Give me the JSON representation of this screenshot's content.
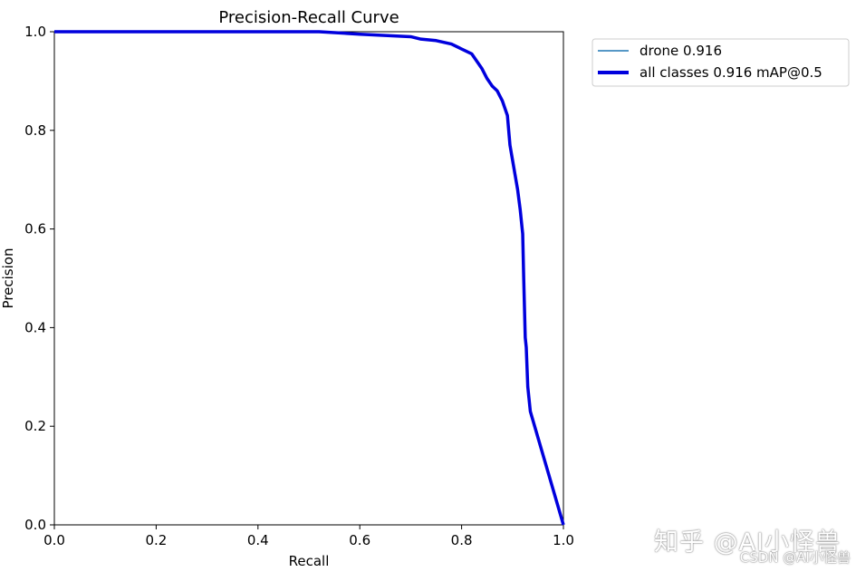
{
  "chart_data": {
    "type": "line",
    "title": "Precision-Recall Curve",
    "xlabel": "Recall",
    "ylabel": "Precision",
    "xlim": [
      0,
      1
    ],
    "ylim": [
      0,
      1
    ],
    "xticks": [
      "0.0",
      "0.2",
      "0.4",
      "0.6",
      "0.8",
      "1.0"
    ],
    "yticks": [
      "0.0",
      "0.2",
      "0.4",
      "0.6",
      "0.8",
      "1.0"
    ],
    "grid": false,
    "legend_position": "outside top-right",
    "series": [
      {
        "name": "drone 0.916",
        "color": "#1f77b4",
        "style": "thin",
        "x": [
          0,
          0.52,
          0.6,
          0.7,
          0.72,
          0.75,
          0.78,
          0.8,
          0.82,
          0.83,
          0.84,
          0.85,
          0.86,
          0.87,
          0.88,
          0.89,
          0.895,
          0.9,
          0.905,
          0.91,
          0.915,
          0.92,
          0.922,
          0.925,
          0.927,
          0.93,
          0.935,
          1.0
        ],
        "y": [
          1.0,
          1.0,
          0.995,
          0.99,
          0.985,
          0.982,
          0.975,
          0.965,
          0.955,
          0.94,
          0.925,
          0.905,
          0.89,
          0.88,
          0.86,
          0.83,
          0.77,
          0.74,
          0.71,
          0.68,
          0.64,
          0.59,
          0.5,
          0.38,
          0.36,
          0.28,
          0.23,
          0.0
        ]
      },
      {
        "name": "all classes 0.916 mAP@0.5",
        "color": "#0000dd",
        "style": "thick",
        "x": [
          0,
          0.52,
          0.6,
          0.7,
          0.72,
          0.75,
          0.78,
          0.8,
          0.82,
          0.83,
          0.84,
          0.85,
          0.86,
          0.87,
          0.88,
          0.89,
          0.895,
          0.9,
          0.905,
          0.91,
          0.915,
          0.92,
          0.922,
          0.925,
          0.927,
          0.93,
          0.935,
          1.0
        ],
        "y": [
          1.0,
          1.0,
          0.995,
          0.99,
          0.985,
          0.982,
          0.975,
          0.965,
          0.955,
          0.94,
          0.925,
          0.905,
          0.89,
          0.88,
          0.86,
          0.83,
          0.77,
          0.74,
          0.71,
          0.68,
          0.64,
          0.59,
          0.5,
          0.38,
          0.36,
          0.28,
          0.23,
          0.0
        ]
      }
    ]
  },
  "watermarks": {
    "zhihu": "知乎 @AI小怪兽",
    "csdn": "CSDN @AI小怪兽"
  }
}
